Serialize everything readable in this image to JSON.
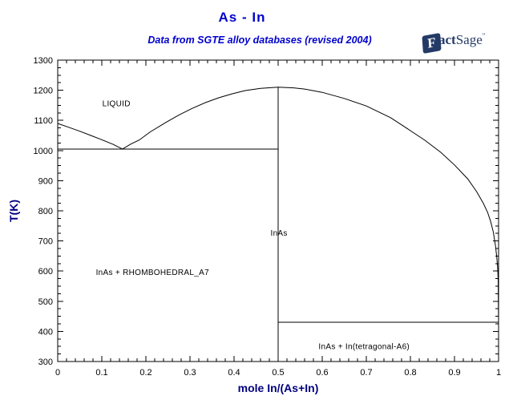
{
  "header": {
    "title": "As - In",
    "subtitle": "Data from SGTE alloy databases (revised 2004)",
    "logo": {
      "f": "F",
      "act": "act",
      "sage": "Sage",
      "mark": "″"
    }
  },
  "chart_data": {
    "type": "line",
    "title": "As - In",
    "subtitle": "Data from SGTE alloy databases (revised 2004)",
    "xlabel": "mole In/(As+In)",
    "ylabel": "T(K)",
    "xlim": [
      0,
      1
    ],
    "ylim": [
      300,
      1300
    ],
    "x_major_ticks": [
      0,
      0.1,
      0.2,
      0.3,
      0.4,
      0.5,
      0.6,
      0.7,
      0.8,
      0.9,
      1
    ],
    "x_tick_labels": [
      "0",
      "0.1",
      "0.2",
      "0.3",
      "0.4",
      "0.5",
      "0.6",
      "0.7",
      "0.8",
      "0.9",
      "1"
    ],
    "y_major_ticks": [
      300,
      400,
      500,
      600,
      700,
      800,
      900,
      1000,
      1100,
      1200,
      1300
    ],
    "x_minor_step": 0.02,
    "y_minor_step": 25,
    "grid": false,
    "legend": "none",
    "colors": {
      "curve": "#000000",
      "frame": "#000000",
      "tick_label": "#000000",
      "axis_title": "#000080",
      "title": "#0000CC",
      "logo": "#243a66"
    },
    "series": [
      {
        "name": "liquidus",
        "points": [
          [
            0,
            1090
          ],
          [
            0.025,
            1077
          ],
          [
            0.05,
            1064
          ],
          [
            0.075,
            1050
          ],
          [
            0.1,
            1036
          ],
          [
            0.125,
            1021
          ],
          [
            0.147,
            1005
          ],
          [
            0.165,
            1021
          ],
          [
            0.185,
            1035
          ],
          [
            0.21,
            1062
          ],
          [
            0.245,
            1093
          ],
          [
            0.275,
            1118
          ],
          [
            0.305,
            1140
          ],
          [
            0.335,
            1159
          ],
          [
            0.365,
            1175
          ],
          [
            0.395,
            1188
          ],
          [
            0.425,
            1199
          ],
          [
            0.46,
            1206
          ],
          [
            0.5,
            1210
          ],
          [
            0.535,
            1208
          ],
          [
            0.56,
            1204
          ],
          [
            0.6,
            1193
          ],
          [
            0.65,
            1173
          ],
          [
            0.7,
            1148
          ],
          [
            0.755,
            1109
          ],
          [
            0.8,
            1066
          ],
          [
            0.833,
            1034
          ],
          [
            0.869,
            994
          ],
          [
            0.9,
            952
          ],
          [
            0.93,
            906
          ],
          [
            0.95,
            864
          ],
          [
            0.965,
            826
          ],
          [
            0.975,
            795
          ],
          [
            0.982,
            765
          ],
          [
            0.988,
            730
          ],
          [
            0.993,
            685
          ],
          [
            0.996,
            645
          ],
          [
            0.998,
            610
          ],
          [
            0.999,
            570
          ],
          [
            1,
            430
          ]
        ]
      },
      {
        "name": "eutectic-line-1005K",
        "points": [
          [
            0,
            1005
          ],
          [
            0.5,
            1005
          ]
        ]
      },
      {
        "name": "inas-stoichiometric-line",
        "points": [
          [
            0.5,
            300
          ],
          [
            0.5,
            1210
          ]
        ]
      },
      {
        "name": "eutectic-line-430K",
        "points": [
          [
            0.5,
            430
          ],
          [
            1,
            430
          ]
        ]
      }
    ],
    "region_labels": [
      {
        "id": "liquid",
        "text": "LIQUID",
        "x": 0.133,
        "T": 1157
      },
      {
        "id": "inas",
        "text": "InAs",
        "x": 0.502,
        "T": 727
      },
      {
        "id": "inas-rhombo",
        "text": "InAs + RHOMBOHEDRAL_A7",
        "x": 0.215,
        "T": 597
      },
      {
        "id": "inas-tetragonal",
        "text": "InAs + In(tetragonal-A6)",
        "x": 0.695,
        "T": 351
      }
    ]
  }
}
